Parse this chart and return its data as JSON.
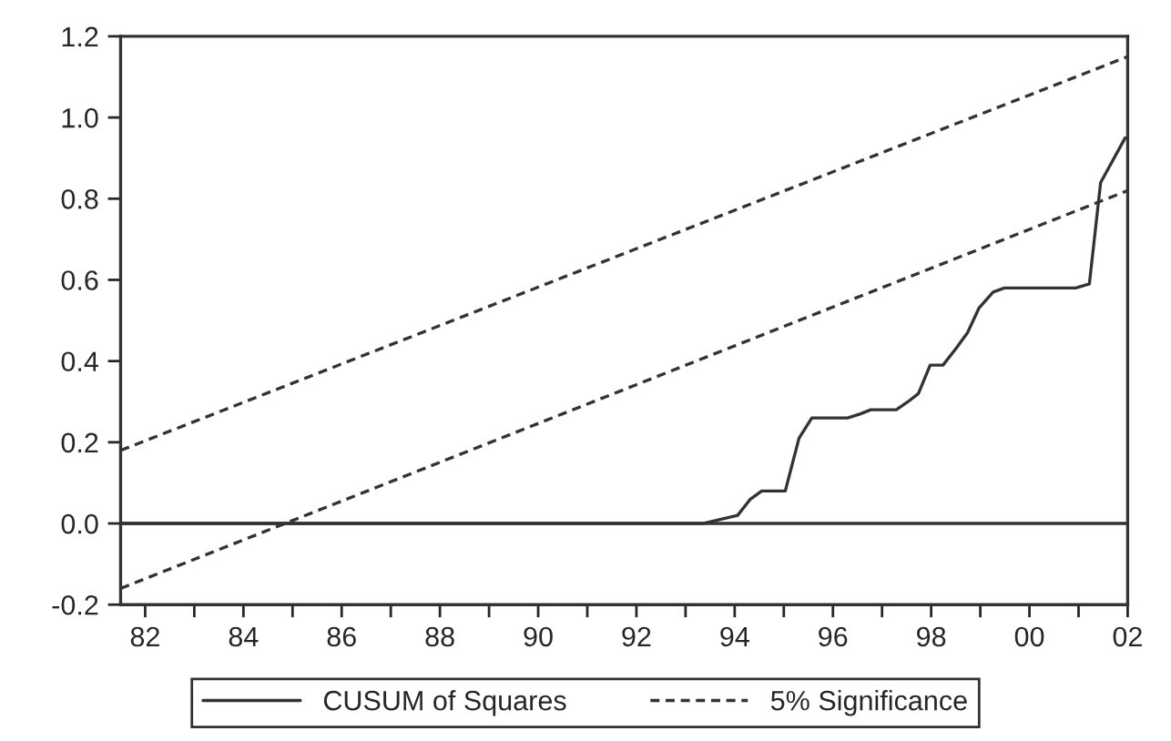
{
  "chart_data": {
    "type": "line",
    "xlim": [
      1981.5,
      2002.0
    ],
    "ylim": [
      -0.2,
      1.2
    ],
    "xticks": [
      {
        "value": 1982,
        "label": "82"
      },
      {
        "value": 1983,
        "label": null
      },
      {
        "value": 1984,
        "label": "84"
      },
      {
        "value": 1985,
        "label": null
      },
      {
        "value": 1986,
        "label": "86"
      },
      {
        "value": 1987,
        "label": null
      },
      {
        "value": 1988,
        "label": "88"
      },
      {
        "value": 1989,
        "label": null
      },
      {
        "value": 1990,
        "label": "90"
      },
      {
        "value": 1991,
        "label": null
      },
      {
        "value": 1992,
        "label": "92"
      },
      {
        "value": 1993,
        "label": null
      },
      {
        "value": 1994,
        "label": "94"
      },
      {
        "value": 1995,
        "label": null
      },
      {
        "value": 1996,
        "label": "96"
      },
      {
        "value": 1997,
        "label": null
      },
      {
        "value": 1998,
        "label": "98"
      },
      {
        "value": 1999,
        "label": null
      },
      {
        "value": 2000,
        "label": "00"
      },
      {
        "value": 2001,
        "label": null
      },
      {
        "value": 2002,
        "label": "02"
      }
    ],
    "yticks": [
      -0.2,
      {
        "value": 0,
        "label": "0.0"
      },
      0.2,
      0.4,
      0.6,
      0.8,
      {
        "value": 1,
        "label": "1.0"
      },
      1.2
    ],
    "grid": false,
    "legend": "bottom",
    "ref_lines": [
      {
        "axis": "y",
        "value": 0,
        "color": "#333333",
        "line_style": "solid"
      }
    ],
    "series": [
      {
        "name": "CUSUM of Squares",
        "color": "#333333",
        "line_style": "solid",
        "x": [
          1981.5,
          1993.35,
          1994.06,
          1994.32,
          1994.55,
          1995.03,
          1995.31,
          1995.57,
          1996.3,
          1996.56,
          1996.77,
          1997.29,
          1997.53,
          1997.74,
          1997.98,
          1998.24,
          1998.5,
          1998.74,
          1998.97,
          1999.26,
          1999.49,
          1999.97,
          2000.23,
          2000.94,
          2001.22,
          2001.45,
          2001.95
        ],
        "values": [
          0,
          0,
          0.02,
          0.06,
          0.08,
          0.08,
          0.21,
          0.26,
          0.26,
          0.27,
          0.28,
          0.28,
          0.3,
          0.32,
          0.39,
          0.39,
          0.43,
          0.47,
          0.53,
          0.57,
          0.58,
          0.58,
          0.58,
          0.58,
          0.59,
          0.84,
          0.95
        ]
      },
      {
        "name": "5% Significance",
        "color": "#333333",
        "line_style": "dashed",
        "x": [
          1981.5,
          2002.0
        ],
        "values": [
          0.18,
          1.15
        ]
      },
      {
        "color": "#333333",
        "line_style": "dashed",
        "x": [
          1981.5,
          2002.0
        ],
        "values": [
          -0.16,
          0.82
        ]
      }
    ]
  }
}
